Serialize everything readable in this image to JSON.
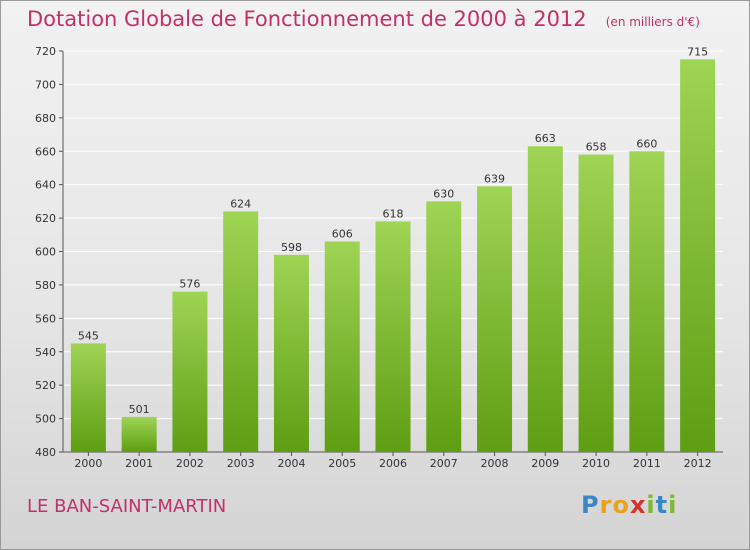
{
  "title": "Dotation Globale de Fonctionnement de 2000 à 2012",
  "unit_note": "(en milliers d'€)",
  "place": "LE BAN-SAINT-MARTIN",
  "logo": {
    "text": "Proxiti",
    "letters": [
      {
        "ch": "P",
        "color": "#3a87c8"
      },
      {
        "ch": "r",
        "color": "#e8a21b"
      },
      {
        "ch": "o",
        "color": "#e8a21b"
      },
      {
        "ch": "x",
        "color": "#d4322c"
      },
      {
        "ch": "i",
        "color": "#7dba2f"
      },
      {
        "ch": "t",
        "color": "#3a87c8"
      },
      {
        "ch": "i",
        "color": "#7dba2f"
      }
    ]
  },
  "colors": {
    "accent": "#c3306b",
    "bar_top": "#9fd455",
    "bar_bottom": "#5e9e12",
    "grid": "#ffffff",
    "axis_text": "#333333"
  },
  "chart_data": {
    "type": "bar",
    "title": "Dotation Globale de Fonctionnement de 2000 à 2012",
    "subtitle": "(en milliers d'€)",
    "xlabel": "",
    "ylabel": "",
    "categories": [
      "2000",
      "2001",
      "2002",
      "2003",
      "2004",
      "2005",
      "2006",
      "2007",
      "2008",
      "2009",
      "2010",
      "2011",
      "2012"
    ],
    "values": [
      545,
      501,
      576,
      624,
      598,
      606,
      618,
      630,
      639,
      663,
      658,
      660,
      715
    ],
    "ylim": [
      480,
      720
    ],
    "yticks": [
      480,
      500,
      520,
      540,
      560,
      580,
      600,
      620,
      640,
      660,
      680,
      700,
      720
    ],
    "grid": true,
    "legend": "none"
  }
}
